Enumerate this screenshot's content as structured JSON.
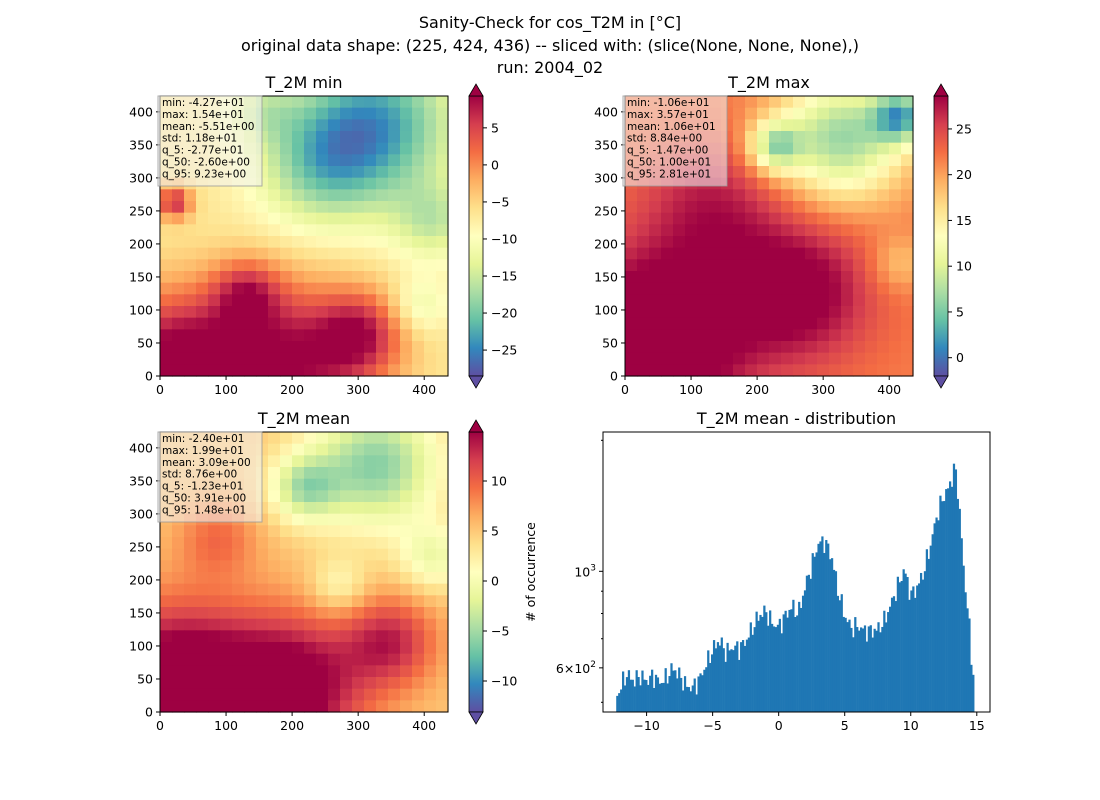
{
  "figure": {
    "title_lines": [
      "Sanity-Check for cos_T2M in [°C]",
      "original data shape: (225, 424, 436) -- sliced with: (slice(None, None, None),)",
      "run: 2004_02"
    ]
  },
  "chart_data": [
    {
      "type": "heatmap",
      "title": "T_2M min",
      "colormap": "Spectral_r",
      "xlim": [
        0,
        436
      ],
      "ylim": [
        0,
        424
      ],
      "xticks": [
        0,
        100,
        200,
        300,
        400
      ],
      "yticks": [
        0,
        50,
        100,
        150,
        200,
        250,
        300,
        350,
        400
      ],
      "colorbar": {
        "min": -28.5,
        "max": 9.3,
        "ticks": [
          5,
          0,
          -5,
          -10,
          -15,
          -20,
          -25
        ],
        "extend": "both"
      },
      "stats": [
        "min: -4.27e+01",
        "max: 1.54e+01",
        "mean: -5.51e+00",
        "std: 1.18e+01",
        "q_5: -2.77e+01",
        "q_50: -2.60e+00",
        "q_95: 9.23e+00"
      ]
    },
    {
      "type": "heatmap",
      "title": "T_2M max",
      "colormap": "Spectral_r",
      "xlim": [
        0,
        436
      ],
      "ylim": [
        0,
        424
      ],
      "xticks": [
        0,
        100,
        200,
        300,
        400
      ],
      "yticks": [
        0,
        50,
        100,
        150,
        200,
        250,
        300,
        350,
        400
      ],
      "colorbar": {
        "min": -2.0,
        "max": 28.6,
        "ticks": [
          25,
          20,
          15,
          10,
          5,
          0
        ],
        "extend": "both"
      },
      "stats": [
        "min: -1.06e+01",
        "max: 3.57e+01",
        "mean: 1.06e+01",
        "std: 8.84e+00",
        "q_5: -1.47e+00",
        "q_50: 1.00e+01",
        "q_95: 2.81e+01"
      ]
    },
    {
      "type": "heatmap",
      "title": "T_2M mean",
      "colormap": "Spectral_r",
      "xlim": [
        0,
        436
      ],
      "ylim": [
        0,
        424
      ],
      "xticks": [
        0,
        100,
        200,
        300,
        400
      ],
      "yticks": [
        0,
        50,
        100,
        150,
        200,
        250,
        300,
        350,
        400
      ],
      "colorbar": {
        "min": -13.1,
        "max": 14.9,
        "ticks": [
          10,
          5,
          0,
          -5,
          -10
        ],
        "extend": "both"
      },
      "stats": [
        "min: -2.40e+01",
        "max: 1.99e+01",
        "mean: 3.09e+00",
        "std: 8.76e+00",
        "q_5: -1.23e+01",
        "q_50: 3.91e+00",
        "q_95: 1.48e+01"
      ]
    },
    {
      "type": "bar",
      "title": "T_2M mean - distribution",
      "ylabel": "# of occurrence",
      "yscale": "log",
      "xlim": [
        -13.3,
        16.0
      ],
      "ylim": [
        475,
        2090
      ],
      "xticks": [
        -10,
        -5,
        0,
        5,
        10,
        15
      ],
      "ytick_labels": [
        {
          "value": 1000,
          "label": "10^3"
        },
        {
          "value": 600,
          "label": "6×10^2"
        }
      ],
      "bin_range": [
        -12.3,
        14.8
      ],
      "color": "#1f77b4",
      "control_points": [
        [
          -12.3,
          510
        ],
        [
          -12.0,
          540
        ],
        [
          -11.5,
          580
        ],
        [
          -11.0,
          560
        ],
        [
          -10.5,
          575
        ],
        [
          -10.0,
          560
        ],
        [
          -9.5,
          575
        ],
        [
          -9.0,
          555
        ],
        [
          -8.5,
          570
        ],
        [
          -8.0,
          600
        ],
        [
          -7.5,
          575
        ],
        [
          -7.0,
          545
        ],
        [
          -6.5,
          540
        ],
        [
          -6.0,
          565
        ],
        [
          -5.5,
          610
        ],
        [
          -5.0,
          660
        ],
        [
          -4.5,
          695
        ],
        [
          -4.0,
          650
        ],
        [
          -3.5,
          670
        ],
        [
          -3.0,
          665
        ],
        [
          -2.5,
          690
        ],
        [
          -2.0,
          740
        ],
        [
          -1.5,
          790
        ],
        [
          -1.0,
          810
        ],
        [
          -0.5,
          760
        ],
        [
          0.0,
          745
        ],
        [
          0.5,
          790
        ],
        [
          1.0,
          830
        ],
        [
          1.5,
          800
        ],
        [
          2.0,
          920
        ],
        [
          2.5,
          1030
        ],
        [
          3.0,
          1160
        ],
        [
          3.5,
          1170
        ],
        [
          4.0,
          1080
        ],
        [
          4.5,
          900
        ],
        [
          5.0,
          790
        ],
        [
          5.5,
          740
        ],
        [
          6.0,
          750
        ],
        [
          6.5,
          730
        ],
        [
          7.0,
          730
        ],
        [
          7.5,
          735
        ],
        [
          8.0,
          770
        ],
        [
          8.5,
          840
        ],
        [
          9.0,
          920
        ],
        [
          9.5,
          1010
        ],
        [
          10.0,
          880
        ],
        [
          10.5,
          920
        ],
        [
          11.0,
          1000
        ],
        [
          11.5,
          1150
        ],
        [
          12.0,
          1350
        ],
        [
          12.5,
          1490
        ],
        [
          13.0,
          1580
        ],
        [
          13.3,
          1750
        ],
        [
          13.6,
          1500
        ],
        [
          14.0,
          1000
        ],
        [
          14.3,
          830
        ],
        [
          14.6,
          620
        ],
        [
          14.8,
          560
        ]
      ]
    }
  ]
}
